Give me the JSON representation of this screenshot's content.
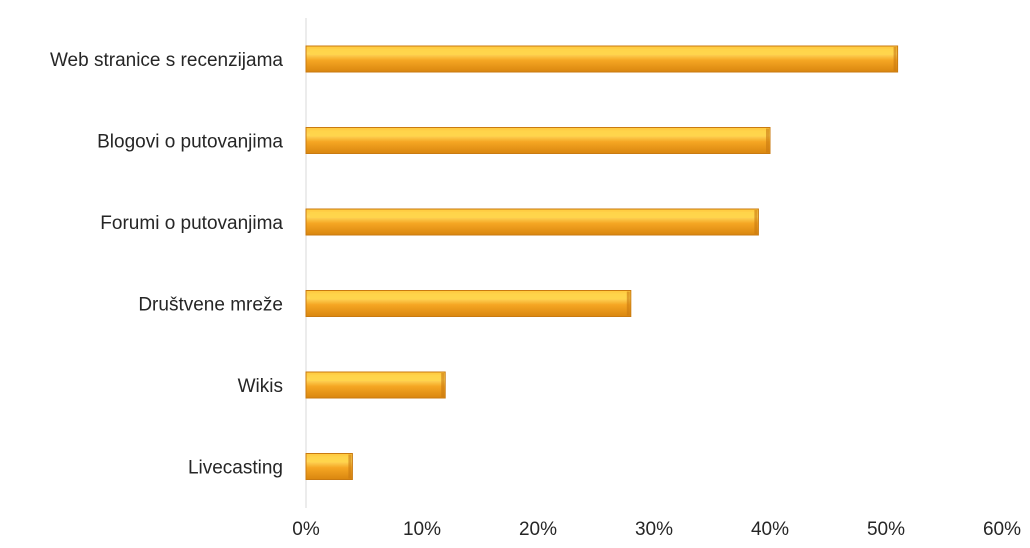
{
  "chart_data": {
    "type": "bar",
    "orientation": "horizontal",
    "title": "",
    "xlabel": "",
    "ylabel": "",
    "categories": [
      "Web stranice s recenzijama",
      "Blogovi o putovanjima",
      "Forumi o putovanjima",
      "Društvene mreže",
      "Wikis",
      "Livecasting"
    ],
    "values": [
      51,
      40,
      39,
      28,
      12,
      4
    ],
    "xlim": [
      0,
      60
    ],
    "xticks": [
      "0%",
      "10%",
      "20%",
      "30%",
      "40%",
      "50%",
      "60%"
    ],
    "grid": false,
    "legend": "none",
    "bar_color": "#F5A623",
    "bar_highlight": "#FFD54A",
    "bar_shadow": "#C97A10"
  }
}
